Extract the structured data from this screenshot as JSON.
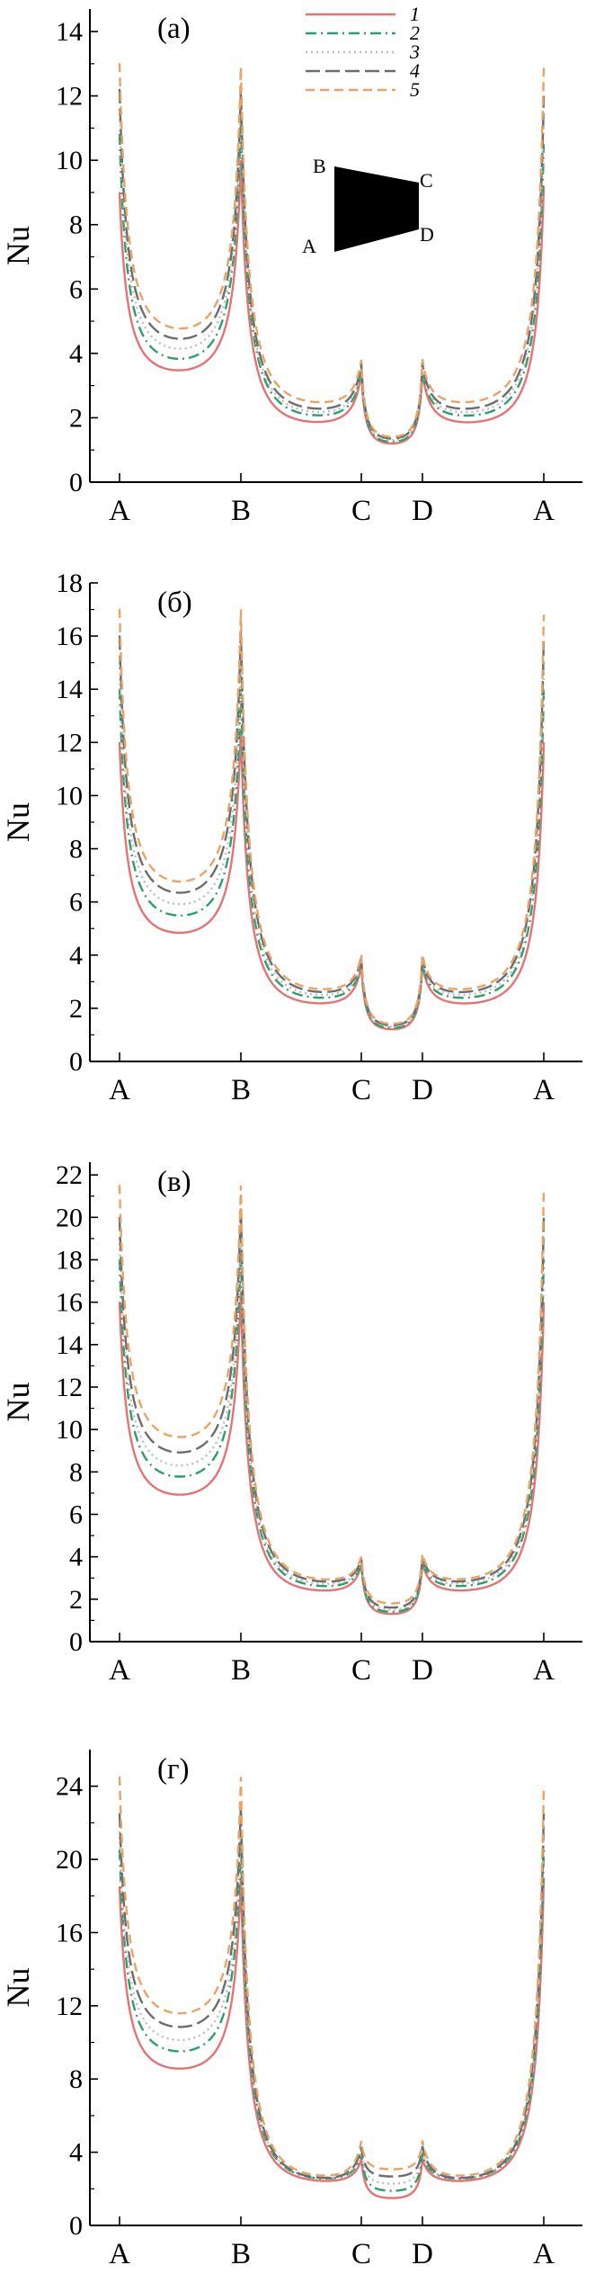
{
  "figure": {
    "legend_colors": {
      "1": "#e57373",
      "2": "#2e9e6a",
      "3": "#bdbdbd",
      "4": "#6d6d6d",
      "5": "#e8a467"
    }
  },
  "chart_data": [
    {
      "type": "line",
      "panel_label": "(а)",
      "ylabel": "Nu",
      "ylim": [
        0,
        14.7
      ],
      "yticks": [
        0,
        2,
        4,
        6,
        8,
        10,
        12,
        14
      ],
      "categories": [
        "A",
        "B",
        "C",
        "D",
        "A"
      ],
      "legend": [
        "1",
        "2",
        "3",
        "4",
        "5"
      ],
      "legend_placement": "top-center",
      "inset": {
        "vertices": [
          "B",
          "C",
          "D",
          "A"
        ]
      },
      "series": [
        {
          "name": "1",
          "color": "#e57373",
          "dash": "solid",
          "edge_min": [
            3.2,
            1.7,
            1.1,
            1.7
          ],
          "vertex_peak": [
            9.0,
            10.0,
            3.4,
            3.4,
            9.2
          ]
        },
        {
          "name": "2",
          "color": "#2e9e6a",
          "dash": "dashdot",
          "edge_min": [
            3.5,
            1.9,
            1.15,
            1.9
          ],
          "vertex_peak": [
            10.8,
            11.3,
            3.5,
            3.5,
            10.5
          ]
        },
        {
          "name": "3",
          "color": "#bdbdbd",
          "dash": "dotted",
          "edge_min": [
            3.8,
            2.0,
            1.2,
            2.0
          ],
          "vertex_peak": [
            11.6,
            11.8,
            3.6,
            3.6,
            11.4
          ]
        },
        {
          "name": "4",
          "color": "#6d6d6d",
          "dash": "longdash",
          "edge_min": [
            4.1,
            2.1,
            1.25,
            2.1
          ],
          "vertex_peak": [
            12.2,
            12.2,
            3.7,
            3.7,
            12.0
          ]
        },
        {
          "name": "5",
          "color": "#e8a467",
          "dash": "dashed",
          "edge_min": [
            4.4,
            2.3,
            1.3,
            2.3
          ],
          "vertex_peak": [
            13.0,
            12.9,
            3.8,
            3.8,
            12.9
          ]
        }
      ]
    },
    {
      "type": "line",
      "panel_label": "(б)",
      "ylabel": "Nu",
      "ylim": [
        0,
        18
      ],
      "yticks": [
        0,
        2,
        4,
        6,
        8,
        10,
        12,
        14,
        16,
        18
      ],
      "categories": [
        "A",
        "B",
        "C",
        "D",
        "A"
      ],
      "series": [
        {
          "name": "1",
          "color": "#e57373",
          "dash": "solid",
          "edge_min": [
            4.5,
            2.0,
            1.1,
            2.0
          ],
          "vertex_peak": [
            12.0,
            12.5,
            3.6,
            3.6,
            12.0
          ]
        },
        {
          "name": "2",
          "color": "#2e9e6a",
          "dash": "dashdot",
          "edge_min": [
            5.1,
            2.2,
            1.15,
            2.2
          ],
          "vertex_peak": [
            14.0,
            14.0,
            3.7,
            3.7,
            14.0
          ]
        },
        {
          "name": "3",
          "color": "#bdbdbd",
          "dash": "dotted",
          "edge_min": [
            5.5,
            2.3,
            1.2,
            2.3
          ],
          "vertex_peak": [
            15.0,
            15.0,
            3.8,
            3.8,
            15.0
          ]
        },
        {
          "name": "4",
          "color": "#6d6d6d",
          "dash": "longdash",
          "edge_min": [
            5.9,
            2.4,
            1.25,
            2.4
          ],
          "vertex_peak": [
            16.0,
            16.2,
            3.9,
            3.9,
            16.0
          ]
        },
        {
          "name": "5",
          "color": "#e8a467",
          "dash": "dashed",
          "edge_min": [
            6.3,
            2.5,
            1.3,
            2.5
          ],
          "vertex_peak": [
            17.0,
            17.0,
            4.0,
            4.0,
            16.8
          ]
        }
      ]
    },
    {
      "type": "line",
      "panel_label": "(в)",
      "ylabel": "Nu",
      "ylim": [
        0,
        22.6
      ],
      "yticks": [
        0,
        2,
        4,
        6,
        8,
        10,
        12,
        14,
        16,
        18,
        20,
        22
      ],
      "categories": [
        "A",
        "B",
        "C",
        "D",
        "A"
      ],
      "series": [
        {
          "name": "1",
          "color": "#e57373",
          "dash": "solid",
          "edge_min": [
            6.5,
            2.2,
            1.2,
            2.2
          ],
          "vertex_peak": [
            16.0,
            16.5,
            3.6,
            3.7,
            16.0
          ]
        },
        {
          "name": "2",
          "color": "#2e9e6a",
          "dash": "dashdot",
          "edge_min": [
            7.3,
            2.4,
            1.3,
            2.4
          ],
          "vertex_peak": [
            18.0,
            18.5,
            3.7,
            3.8,
            18.0
          ]
        },
        {
          "name": "3",
          "color": "#bdbdbd",
          "dash": "dotted",
          "edge_min": [
            7.8,
            2.5,
            1.4,
            2.5
          ],
          "vertex_peak": [
            19.0,
            19.5,
            3.8,
            3.9,
            19.0
          ]
        },
        {
          "name": "4",
          "color": "#6d6d6d",
          "dash": "longdash",
          "edge_min": [
            8.4,
            2.6,
            1.5,
            2.6
          ],
          "vertex_peak": [
            20.0,
            20.5,
            3.9,
            4.0,
            20.0
          ]
        },
        {
          "name": "5",
          "color": "#e8a467",
          "dash": "dashed",
          "edge_min": [
            9.1,
            2.7,
            1.7,
            2.7
          ],
          "vertex_peak": [
            21.5,
            21.5,
            4.0,
            4.1,
            21.3
          ]
        }
      ]
    },
    {
      "type": "line",
      "panel_label": "(г)",
      "ylabel": "Nu",
      "ylim": [
        0,
        26
      ],
      "yticks": [
        0,
        4,
        8,
        12,
        16,
        20,
        24
      ],
      "categories": [
        "A",
        "B",
        "C",
        "D",
        "A"
      ],
      "series": [
        {
          "name": "1",
          "color": "#e57373",
          "dash": "solid",
          "edge_min": [
            8.1,
            2.2,
            1.4,
            2.2
          ],
          "vertex_peak": [
            18.5,
            19.0,
            3.6,
            3.6,
            19.0
          ]
        },
        {
          "name": "2",
          "color": "#2e9e6a",
          "dash": "dashdot",
          "edge_min": [
            9.0,
            2.3,
            1.8,
            2.3
          ],
          "vertex_peak": [
            20.5,
            21.0,
            3.9,
            3.9,
            20.5
          ]
        },
        {
          "name": "3",
          "color": "#bdbdbd",
          "dash": "dotted",
          "edge_min": [
            9.6,
            2.3,
            2.2,
            2.3
          ],
          "vertex_peak": [
            21.5,
            22.0,
            4.1,
            4.1,
            21.5
          ]
        },
        {
          "name": "4",
          "color": "#6d6d6d",
          "dash": "longdash",
          "edge_min": [
            10.3,
            2.3,
            2.6,
            2.3
          ],
          "vertex_peak": [
            22.5,
            23.0,
            4.3,
            4.3,
            22.5
          ]
        },
        {
          "name": "5",
          "color": "#e8a467",
          "dash": "dashed",
          "edge_min": [
            11.0,
            2.4,
            3.0,
            2.4
          ],
          "vertex_peak": [
            24.5,
            24.5,
            4.6,
            4.6,
            24.0
          ]
        }
      ]
    }
  ]
}
